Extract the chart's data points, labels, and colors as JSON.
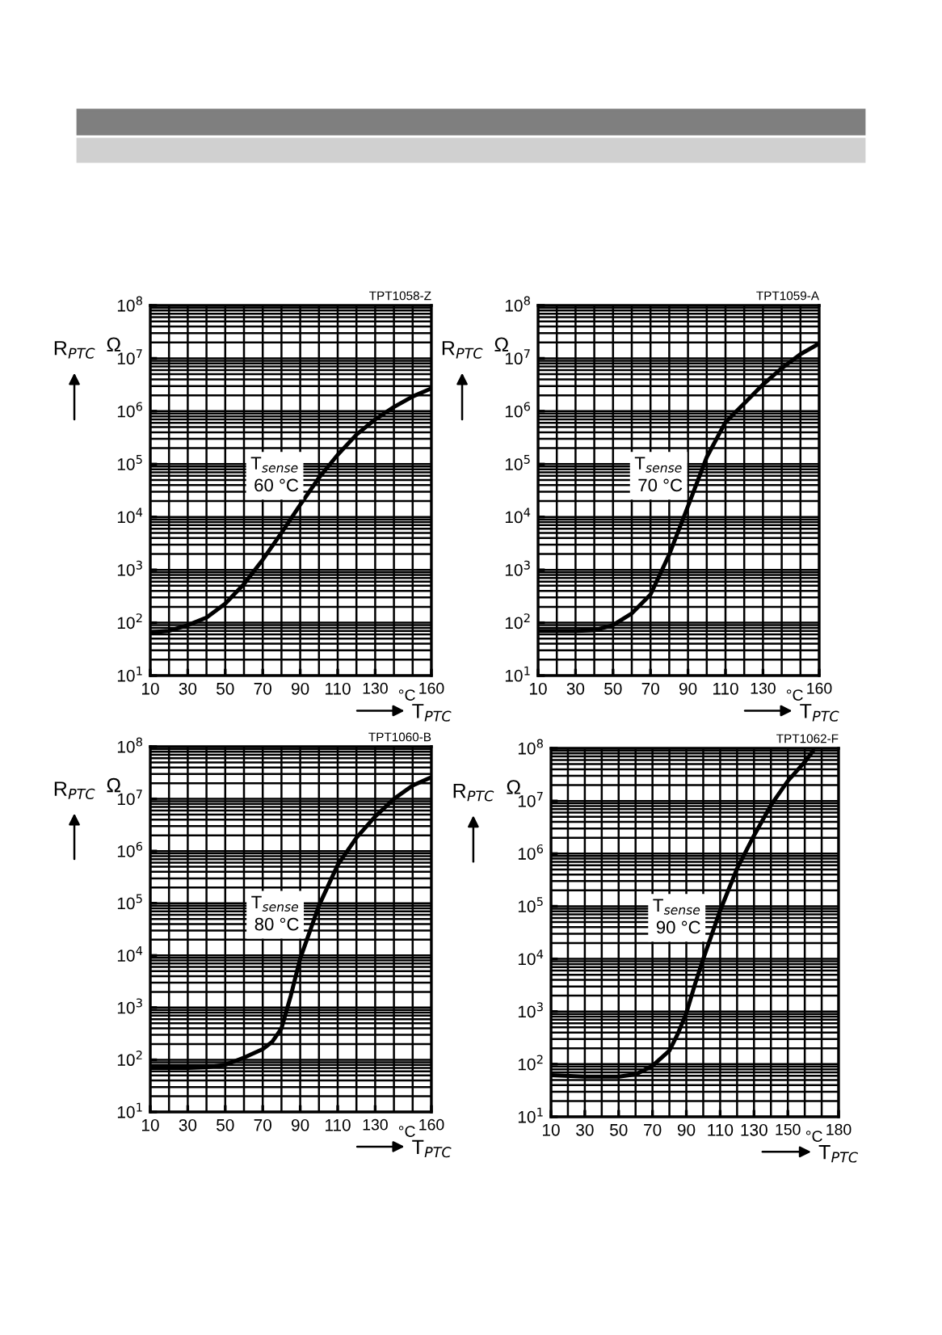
{
  "chart_data": [
    {
      "type": "line",
      "xlabel": "T$_{PTC}$",
      "ylabel": "R$_{PTC}$",
      "annotations": [
        "TPT1058-Z",
        "Ω",
        "T$_{sense}$\n60 °C",
        "°C"
      ],
      "log": "y",
      "grid": true,
      "xlim": [
        10,
        160
      ],
      "xticks": [
        10,
        30,
        50,
        70,
        90,
        110,
        130,
        160
      ],
      "ylim": [
        10,
        100000000
      ],
      "yticks": [
        {
          "value": 10,
          "label": "10$^{1}$"
        },
        {
          "value": 100,
          "label": "10$^{2}$"
        },
        {
          "value": 1000,
          "label": "10$^{3}$"
        },
        {
          "value": 10000,
          "label": "10$^{4}$"
        },
        {
          "value": 100000,
          "label": "10$^{5}$"
        },
        {
          "value": 1000000,
          "label": "10$^{6}$"
        },
        {
          "value": 10000000,
          "label": "10$^{7}$"
        },
        {
          "value": 100000000,
          "label": "10$^{8}$"
        }
      ],
      "series": [
        {
          "color": "#000000",
          "x": [
            10,
            20,
            30,
            40,
            50,
            60,
            70,
            80,
            90,
            100,
            110,
            120,
            130,
            140,
            150,
            160
          ],
          "values": [
            66,
            70,
            90,
            125,
            230,
            540,
            1550,
            5000,
            17000,
            55000,
            150000,
            360000,
            700000,
            1200000,
            1900000,
            2700000
          ]
        }
      ]
    },
    {
      "type": "line",
      "xlabel": "T$_{PTC}$",
      "ylabel": "R$_{PTC}$",
      "annotations": [
        "TPT1059-A",
        "Ω",
        "T$_{sense}$\n70 °C",
        "°C"
      ],
      "log": "y",
      "grid": true,
      "xlim": [
        10,
        160
      ],
      "xticks": [
        10,
        30,
        50,
        70,
        90,
        110,
        130,
        160
      ],
      "ylim": [
        10,
        100000000
      ],
      "yticks": [
        {
          "value": 10,
          "label": "10$^{1}$"
        },
        {
          "value": 100,
          "label": "10$^{2}$"
        },
        {
          "value": 1000,
          "label": "10$^{3}$"
        },
        {
          "value": 10000,
          "label": "10$^{4}$"
        },
        {
          "value": 100000,
          "label": "10$^{5}$"
        },
        {
          "value": 1000000,
          "label": "10$^{6}$"
        },
        {
          "value": 10000000,
          "label": "10$^{7}$"
        },
        {
          "value": 100000000,
          "label": "10$^{8}$"
        }
      ],
      "series": [
        {
          "color": "#000000",
          "x": [
            10,
            30,
            40,
            50,
            60,
            70,
            80,
            90,
            100,
            110,
            120,
            130,
            140,
            150,
            160
          ],
          "values": [
            70,
            70,
            72,
            90,
            150,
            340,
            1950,
            16000,
            135000,
            620000,
            1400000,
            3200000,
            6500000,
            12000000,
            19000000
          ]
        }
      ]
    },
    {
      "type": "line",
      "xlabel": "T$_{PTC}$",
      "ylabel": "R$_{PTC}$",
      "annotations": [
        "TPT1060-B",
        "Ω",
        "T$_{sense}$\n80 °C",
        "°C"
      ],
      "log": "y",
      "grid": true,
      "xlim": [
        10,
        160
      ],
      "xticks": [
        10,
        30,
        50,
        70,
        90,
        110,
        130,
        160
      ],
      "ylim": [
        10,
        100000000
      ],
      "yticks": [
        {
          "value": 10,
          "label": "10$^{1}$"
        },
        {
          "value": 100,
          "label": "10$^{2}$"
        },
        {
          "value": 1000,
          "label": "10$^{3}$"
        },
        {
          "value": 10000,
          "label": "10$^{4}$"
        },
        {
          "value": 100000,
          "label": "10$^{5}$"
        },
        {
          "value": 1000000,
          "label": "10$^{6}$"
        },
        {
          "value": 10000000,
          "label": "10$^{7}$"
        },
        {
          "value": 100000000,
          "label": "10$^{8}$"
        }
      ],
      "series": [
        {
          "color": "#000000",
          "x": [
            10,
            30,
            40,
            50,
            60,
            70,
            75,
            80,
            85,
            90,
            100,
            110,
            120,
            130,
            140,
            150,
            160
          ],
          "values": [
            70,
            70,
            72,
            80,
            110,
            160,
            220,
            400,
            1700,
            8700,
            90000,
            540000,
            1800000,
            4600000,
            10000000,
            18000000,
            26000000
          ]
        }
      ]
    },
    {
      "type": "line",
      "xlabel": "T$_{PTC}$",
      "ylabel": "R$_{PTC}$",
      "annotations": [
        "TPT1062-F",
        "Ω",
        "T$_{sense}$\n90 °C",
        "°C"
      ],
      "log": "y",
      "grid": true,
      "xlim": [
        10,
        180
      ],
      "xticks": [
        10,
        30,
        50,
        70,
        90,
        110,
        130,
        150,
        180
      ],
      "ylim": [
        10,
        100000000
      ],
      "yticks": [
        {
          "value": 10,
          "label": "10$^{1}$"
        },
        {
          "value": 100,
          "label": "10$^{2}$"
        },
        {
          "value": 1000,
          "label": "10$^{3}$"
        },
        {
          "value": 10000,
          "label": "10$^{4}$"
        },
        {
          "value": 100000,
          "label": "10$^{5}$"
        },
        {
          "value": 1000000,
          "label": "10$^{6}$"
        },
        {
          "value": 10000000,
          "label": "10$^{7}$"
        },
        {
          "value": 100000000,
          "label": "10$^{8}$"
        }
      ],
      "series": [
        {
          "color": "#000000",
          "x": [
            10,
            30,
            50,
            60,
            70,
            80,
            85,
            90,
            95,
            100,
            110,
            120,
            130,
            140,
            150,
            160,
            165
          ],
          "values": [
            62,
            58,
            58,
            64,
            93,
            180,
            380,
            930,
            3200,
            10000,
            83000,
            520000,
            2200000,
            8300000,
            24000000,
            55000000,
            90000000
          ]
        }
      ]
    }
  ]
}
